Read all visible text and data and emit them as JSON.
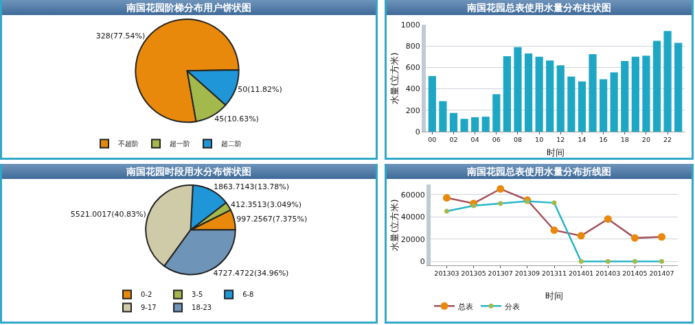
{
  "chart_data": [
    {
      "type": "pie",
      "title": "南国花园阶梯分布用户饼状图",
      "categories": [
        "不超阶",
        "超一阶",
        "超二阶"
      ],
      "values": [
        328,
        45,
        50
      ],
      "colors": [
        "#e8890c",
        "#a4b94c",
        "#1f96d8"
      ],
      "value_labels": [
        "328(77.54%)",
        "45(10.63%)",
        "50(11.82%)"
      ],
      "legend": "bottom left"
    },
    {
      "type": "bar",
      "title": "南国花园总表使用水量分布柱状图",
      "xlabel": "时间",
      "ylabel": "水量(立方米)",
      "categories": [
        "00",
        null,
        "02",
        null,
        "04",
        null,
        "06",
        null,
        "08",
        null,
        "10",
        null,
        "12",
        null,
        "14",
        null,
        "16",
        null,
        "18",
        null,
        "20",
        null,
        "22",
        null
      ],
      "values": [
        520,
        285,
        175,
        120,
        135,
        140,
        350,
        705,
        790,
        730,
        700,
        665,
        620,
        515,
        470,
        725,
        490,
        555,
        660,
        700,
        710,
        850,
        940,
        830
      ],
      "color": "#1ea7c4",
      "ylim": [
        0,
        1000
      ],
      "yticks": [
        0,
        200,
        400,
        600,
        800,
        1000
      ],
      "grid": "y"
    },
    {
      "type": "pie",
      "title": "南国花园时段用水分布饼状图",
      "categories": [
        "0-2",
        "3-5",
        "6-8",
        "9-17",
        "18-23"
      ],
      "values": [
        997.2567,
        412.3513,
        1863.7143,
        5521.0017,
        4727.4722
      ],
      "colors": [
        "#e8890c",
        "#a4b94c",
        "#1f96d8",
        "#cfcba8",
        "#6e94b8"
      ],
      "value_labels": [
        "997.2567(7.375%)",
        "412.3513(3.049%)",
        "1863.7143(13.78%)",
        "5521.0017(40.83%)",
        "4727.4722(34.96%)"
      ],
      "legend": "bottom left"
    },
    {
      "type": "line",
      "title": "南国花园总表使用水量分布折线图",
      "xlabel": "时间",
      "ylabel": "水量(立方米)",
      "categories": [
        "201303",
        "201305",
        "201307",
        "201309",
        "201311",
        "201401",
        "201403",
        "201405",
        "201407"
      ],
      "ylim": [
        -3500,
        69000
      ],
      "yticks": [
        0,
        20000,
        40000,
        60000
      ],
      "grid": "y",
      "marker": "circle",
      "legend": "bottom left",
      "series": [
        {
          "name": "总表",
          "color": "#a5505a",
          "colors": [
            "#e8890c",
            "#e8890c",
            "#e8890c",
            "#e8890c",
            "#e8890c",
            "#e8890c",
            "#e8890c",
            "#e8890c",
            "#e8890c"
          ],
          "values": [
            57000,
            52000,
            65000,
            55000,
            28000,
            23000,
            38000,
            21000,
            22000
          ]
        },
        {
          "name": "分表",
          "color": "#27b5c8",
          "colors": [
            "#a4b94c",
            "#a4b94c",
            "#a4b94c",
            "#a4b94c",
            "#a4b94c",
            "#a4b94c",
            "#a4b94c",
            "#a4b94c",
            "#a4b94c"
          ],
          "values": [
            45000,
            50000,
            52000,
            54000,
            52500,
            0,
            0,
            0,
            0
          ]
        }
      ]
    }
  ]
}
